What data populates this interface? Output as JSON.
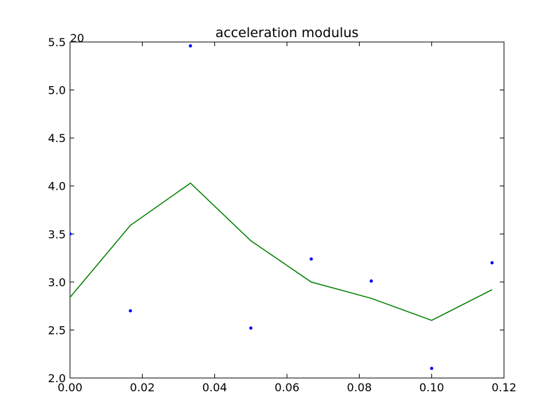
{
  "chart_data": {
    "type": "line",
    "title": "acceleration modulus",
    "offset_text": "20",
    "xlabel": "",
    "ylabel": "",
    "xlim": [
      0.0,
      0.12
    ],
    "ylim": [
      2.0,
      5.5
    ],
    "x_ticks": [
      "0.00",
      "0.02",
      "0.04",
      "0.06",
      "0.08",
      "0.10",
      "0.12"
    ],
    "y_ticks": [
      "2.0",
      "2.5",
      "3.0",
      "3.5",
      "4.0",
      "4.5",
      "5.0",
      "5.5"
    ],
    "grid": false,
    "legend": "none",
    "series": [
      {
        "style": "scatter",
        "color": "#0000ff",
        "x": [
          0.0,
          0.0167,
          0.0333,
          0.05,
          0.0667,
          0.0833,
          0.1,
          0.1167
        ],
        "y": [
          3.5,
          2.7,
          5.46,
          2.52,
          3.24,
          3.01,
          2.1,
          3.2
        ]
      },
      {
        "style": "line",
        "color": "#008000",
        "x": [
          0.0,
          0.0167,
          0.0333,
          0.05,
          0.0667,
          0.0833,
          0.1,
          0.1167
        ],
        "y": [
          2.84,
          3.59,
          4.03,
          3.43,
          3.0,
          2.83,
          2.6,
          2.92
        ]
      }
    ]
  }
}
